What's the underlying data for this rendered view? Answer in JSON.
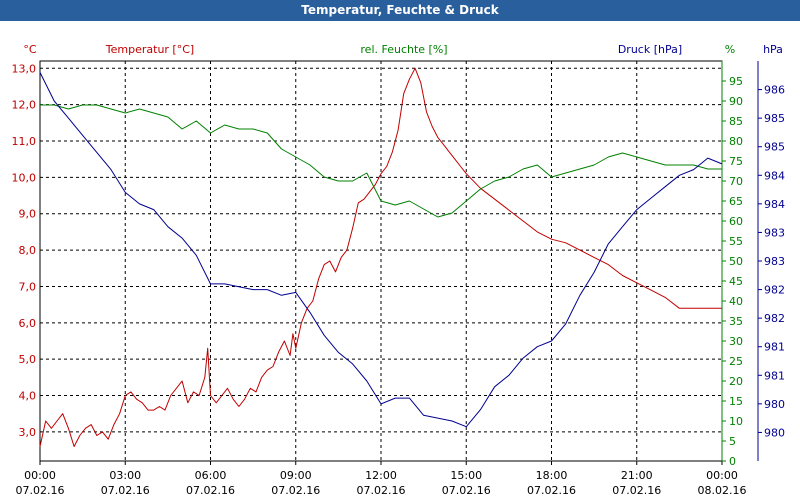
{
  "window": {
    "title": "Temperatur, Feuchte & Druck"
  },
  "chart_data": {
    "type": "line",
    "title": "Temperatur, Feuchte & Druck",
    "x_labels": [
      [
        "00:00",
        "07.02.16"
      ],
      [
        "03:00",
        "07.02.16"
      ],
      [
        "06:00",
        "07.02.16"
      ],
      [
        "09:00",
        "07.02.16"
      ],
      [
        "12:00",
        "07.02.16"
      ],
      [
        "15:00",
        "07.02.16"
      ],
      [
        "18:00",
        "07.02.16"
      ],
      [
        "21:00",
        "07.02.16"
      ],
      [
        "00:00",
        "08.02.16"
      ]
    ],
    "x_range_hours": [
      0,
      24
    ],
    "grid": true,
    "axes": {
      "left": {
        "unit": "°C",
        "label": "Temperatur [°C]",
        "range": [
          2.2,
          13.2
        ],
        "ticks": [
          "3,0",
          "4,0",
          "5,0",
          "6,0",
          "7,0",
          "8,0",
          "9,0",
          "10,0",
          "11,0",
          "12,0",
          "13,0"
        ],
        "color": "#c00000"
      },
      "right1": {
        "unit": "%",
        "label": "rel. Feuchte [%]",
        "range": [
          0,
          100
        ],
        "ticks": [
          "0",
          "5",
          "10",
          "15",
          "20",
          "25",
          "30",
          "35",
          "40",
          "45",
          "50",
          "55",
          "60",
          "65",
          "70",
          "75",
          "80",
          "85",
          "90",
          "95"
        ],
        "color": "#008000"
      },
      "right2": {
        "unit": "hPa",
        "label": "Druck [hPa]",
        "range": [
          979.5,
          986.5
        ],
        "ticks": [
          "980",
          "980",
          "981",
          "981",
          "982",
          "982",
          "983",
          "983",
          "984",
          "984",
          "985",
          "985",
          "986"
        ],
        "color": "#000090"
      }
    },
    "series": [
      {
        "name": "Temperatur [°C]",
        "axis": "left",
        "color": "#c00000",
        "x": [
          0,
          0.2,
          0.4,
          0.6,
          0.8,
          1.0,
          1.2,
          1.4,
          1.6,
          1.8,
          2.0,
          2.2,
          2.4,
          2.6,
          2.8,
          3.0,
          3.2,
          3.4,
          3.6,
          3.8,
          4.0,
          4.2,
          4.4,
          4.6,
          4.8,
          5.0,
          5.2,
          5.4,
          5.6,
          5.8,
          5.9,
          6.0,
          6.2,
          6.4,
          6.6,
          6.8,
          7.0,
          7.2,
          7.4,
          7.6,
          7.8,
          8.0,
          8.2,
          8.4,
          8.6,
          8.8,
          8.9,
          9.0,
          9.2,
          9.4,
          9.6,
          9.8,
          10.0,
          10.2,
          10.4,
          10.6,
          10.8,
          11.0,
          11.2,
          11.4,
          11.6,
          11.8,
          12.0,
          12.2,
          12.4,
          12.6,
          12.8,
          13.0,
          13.2,
          13.4,
          13.6,
          13.8,
          14.0,
          14.2,
          14.4,
          14.6,
          14.8,
          15.0,
          15.5,
          16.0,
          16.5,
          17.0,
          17.5,
          18.0,
          18.5,
          19.0,
          19.5,
          20.0,
          20.5,
          21.0,
          21.5,
          22.0,
          22.5,
          23.0,
          23.5,
          24.0
        ],
        "values": [
          2.6,
          3.3,
          3.1,
          3.3,
          3.5,
          3.1,
          2.6,
          2.9,
          3.1,
          3.2,
          2.9,
          3.0,
          2.8,
          3.2,
          3.5,
          4.0,
          4.1,
          3.9,
          3.8,
          3.6,
          3.6,
          3.7,
          3.6,
          4.0,
          4.2,
          4.4,
          3.8,
          4.1,
          4.0,
          4.5,
          5.3,
          4.0,
          3.8,
          4.0,
          4.2,
          3.9,
          3.7,
          3.9,
          4.2,
          4.1,
          4.5,
          4.7,
          4.8,
          5.2,
          5.5,
          5.1,
          5.7,
          5.3,
          6.0,
          6.4,
          6.6,
          7.2,
          7.6,
          7.7,
          7.4,
          7.8,
          8.0,
          8.6,
          9.3,
          9.4,
          9.6,
          9.8,
          10.1,
          10.3,
          10.7,
          11.3,
          12.3,
          12.7,
          13.0,
          12.6,
          11.8,
          11.4,
          11.1,
          10.9,
          10.7,
          10.5,
          10.3,
          10.1,
          9.7,
          9.4,
          9.1,
          8.8,
          8.5,
          8.3,
          8.2,
          8.0,
          7.8,
          7.6,
          7.3,
          7.1,
          6.9,
          6.7,
          6.4,
          6.4,
          6.4,
          6.4
        ],
        "x_note": "hours since 00:00"
      },
      {
        "name": "rel. Feuchte [%]",
        "axis": "right1",
        "color": "#008000",
        "x": [
          0,
          0.5,
          1.0,
          1.5,
          2.0,
          2.5,
          3.0,
          3.5,
          4.0,
          4.5,
          5.0,
          5.5,
          6.0,
          6.5,
          7.0,
          7.5,
          8.0,
          8.5,
          9.0,
          9.5,
          10.0,
          10.5,
          11.0,
          11.5,
          12.0,
          12.5,
          13.0,
          13.5,
          14.0,
          14.5,
          15.0,
          15.5,
          16.0,
          16.5,
          17.0,
          17.5,
          18.0,
          18.5,
          19.0,
          19.5,
          20.0,
          20.5,
          21.0,
          21.5,
          22.0,
          22.5,
          23.0,
          23.5,
          24.0
        ],
        "values": [
          89,
          89,
          88,
          89,
          89,
          88,
          87,
          88,
          87,
          86,
          83,
          85,
          82,
          84,
          83,
          83,
          82,
          78,
          76,
          74,
          71,
          70,
          70,
          72,
          65,
          64,
          65,
          63,
          61,
          62,
          65,
          68,
          70,
          71,
          73,
          74,
          71,
          72,
          73,
          74,
          76,
          77,
          76,
          75,
          74,
          74,
          74,
          73,
          73
        ]
      },
      {
        "name": "Druck [hPa]",
        "axis": "right2",
        "color": "#000090",
        "x": [
          0,
          0.5,
          1.0,
          1.5,
          2.0,
          2.5,
          3.0,
          3.5,
          4.0,
          4.5,
          5.0,
          5.5,
          6.0,
          6.5,
          7.0,
          7.5,
          8.0,
          8.5,
          9.0,
          9.5,
          10.0,
          10.5,
          11.0,
          11.5,
          12.0,
          12.5,
          13.0,
          13.5,
          14.0,
          14.5,
          15.0,
          15.5,
          16.0,
          16.5,
          17.0,
          17.5,
          18.0,
          18.5,
          19.0,
          19.5,
          20.0,
          20.5,
          21.0,
          21.5,
          22.0,
          22.5,
          23.0,
          23.5,
          24.0
        ],
        "values": [
          986.3,
          985.8,
          985.5,
          985.2,
          984.9,
          984.6,
          984.2,
          984.0,
          983.9,
          983.6,
          983.4,
          983.1,
          982.6,
          982.6,
          982.55,
          982.5,
          982.5,
          982.4,
          982.45,
          982.1,
          981.7,
          981.4,
          981.2,
          980.9,
          980.5,
          980.6,
          980.6,
          980.3,
          980.25,
          980.2,
          980.1,
          980.4,
          980.8,
          981.0,
          981.3,
          981.5,
          981.6,
          981.9,
          982.4,
          982.8,
          983.3,
          983.6,
          983.9,
          984.1,
          984.3,
          984.5,
          984.6,
          984.8,
          984.7
        ]
      }
    ]
  }
}
